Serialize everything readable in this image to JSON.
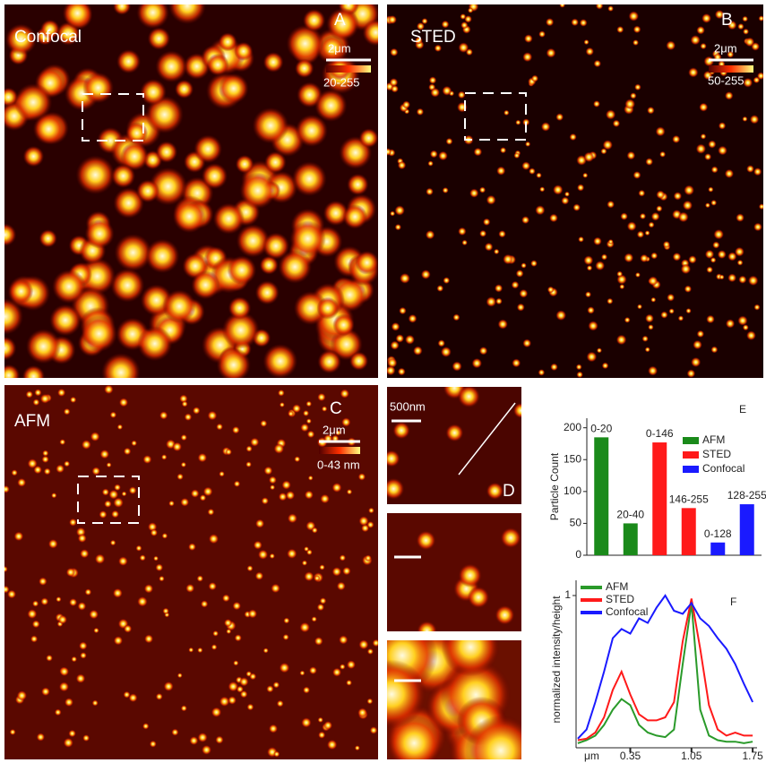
{
  "panels": [
    {
      "name": "Confocal",
      "letter": "A",
      "scale": "2μm",
      "range": "20-255"
    },
    {
      "name": "STED",
      "letter": "B",
      "scale": "2μm",
      "range": "50-255"
    },
    {
      "name": "AFM",
      "letter": "C",
      "scale": "2μm",
      "range": "0-43 nm"
    },
    {
      "letter": "D",
      "scale": "500nm"
    }
  ],
  "chart_data": [
    {
      "type": "bar",
      "panel_letter": "E",
      "y_label": "Particle Count",
      "categories": [
        "0-20",
        "20-40",
        "0-146",
        "146-255",
        "0-128",
        "128-255"
      ],
      "series": [
        {
          "name": "AFM",
          "color": "#1a8a1a",
          "values": [
            185,
            50,
            null,
            null,
            null,
            null
          ]
        },
        {
          "name": "STED",
          "color": "#ff1a1a",
          "values": [
            null,
            null,
            177,
            74,
            null,
            null
          ]
        },
        {
          "name": "Confocal",
          "color": "#1a1aff",
          "values": [
            null,
            null,
            null,
            null,
            20,
            80
          ]
        }
      ],
      "ylim": [
        0,
        215
      ],
      "yticks": [
        0,
        50,
        100,
        150,
        200
      ],
      "legend": "upper right"
    },
    {
      "type": "line",
      "panel_letter": "F",
      "y_label": "normalized intensity/height",
      "x_label": "μm",
      "x": [
        -0.25,
        -0.15,
        -0.05,
        0.05,
        0.15,
        0.25,
        0.35,
        0.45,
        0.55,
        0.65,
        0.75,
        0.85,
        0.95,
        1.05,
        1.15,
        1.25,
        1.35,
        1.45,
        1.55,
        1.65,
        1.75
      ],
      "series": [
        {
          "name": "AFM",
          "color": "#2a9a2a",
          "values": [
            0.03,
            0.05,
            0.08,
            0.15,
            0.25,
            0.32,
            0.28,
            0.15,
            0.1,
            0.08,
            0.07,
            0.12,
            0.55,
            0.95,
            0.25,
            0.08,
            0.05,
            0.04,
            0.04,
            0.03,
            0.04
          ]
        },
        {
          "name": "STED",
          "color": "#ff1a1a",
          "values": [
            0.05,
            0.06,
            0.1,
            0.2,
            0.38,
            0.5,
            0.35,
            0.22,
            0.18,
            0.18,
            0.2,
            0.3,
            0.7,
            0.98,
            0.65,
            0.28,
            0.12,
            0.08,
            0.1,
            0.08,
            0.08
          ]
        },
        {
          "name": "Confocal",
          "color": "#1a1aff",
          "values": [
            0.06,
            0.12,
            0.3,
            0.5,
            0.72,
            0.78,
            0.75,
            0.85,
            0.82,
            0.92,
            1.0,
            0.9,
            0.88,
            0.95,
            0.85,
            0.8,
            0.72,
            0.65,
            0.55,
            0.42,
            0.3
          ]
        }
      ],
      "xlim": [
        -0.27,
        1.8
      ],
      "xticks": [
        0.35,
        1.05,
        1.75
      ],
      "ylim": [
        0,
        1.1
      ],
      "yticks": [
        1
      ],
      "legend": "upper left"
    }
  ]
}
